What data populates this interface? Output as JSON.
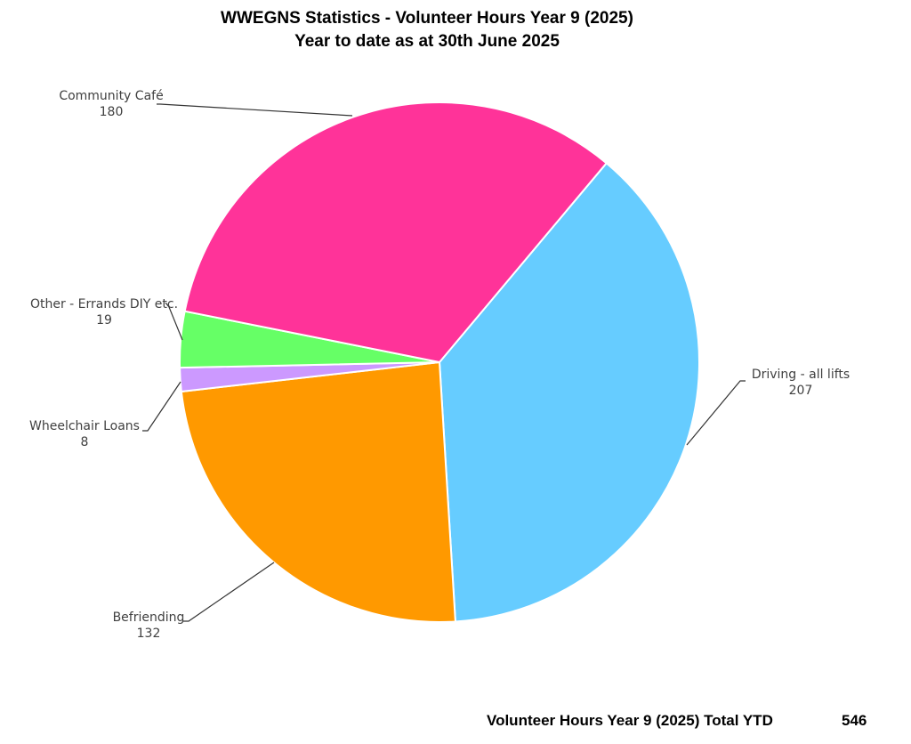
{
  "chart_data": {
    "type": "pie",
    "title": "WWEGNS Statistics - Volunteer Hours Year 9  (2025)",
    "subtitle": "Year to date as at 30th June 2025",
    "categories": [
      "Driving - all lifts",
      "Befriending",
      "Wheelchair Loans",
      "Other - Errands DIY etc.",
      "Community Café"
    ],
    "values": [
      207,
      132,
      8,
      19,
      180
    ],
    "colors": [
      "#66ccff",
      "#ff9900",
      "#cc99ff",
      "#66ff66",
      "#ff3399"
    ],
    "total_label": "Volunteer Hours Year 9 (2025) Total YTD",
    "total": 546
  }
}
